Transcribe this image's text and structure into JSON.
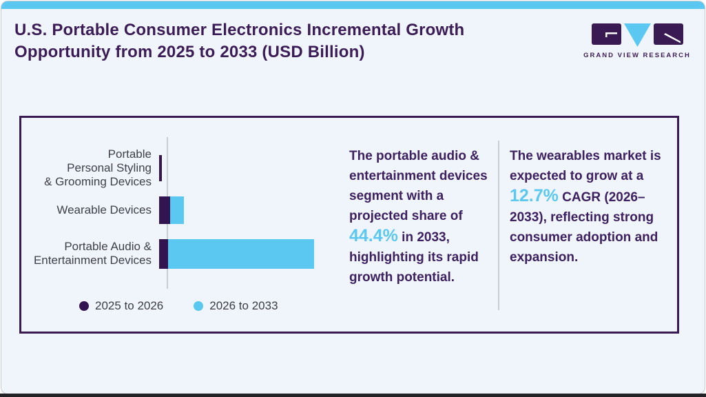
{
  "page": {
    "title": "U.S. Portable Consumer Electronics Incremental Growth\nOpportunity from 2025 to 2033 (USD Billion)",
    "accent_color": "#5bc8f2",
    "title_color": "#3b1c57",
    "card_border_color": "#3a1a52",
    "background_color": "#eff5fa"
  },
  "logo": {
    "brand": "GRAND VIEW RESEARCH",
    "icon": "gvr-monogram-icon",
    "mark_color": "#3a1a52",
    "v_color": "#5bc8f2"
  },
  "chart_data": {
    "type": "bar",
    "orientation": "horizontal",
    "stacked": true,
    "title": "U.S. Portable Consumer Electronics Incremental Growth Opportunity from 2025 to 2033 (USD Billion)",
    "categories": [
      "Portable Personal Styling & Grooming Devices",
      "Wearable Devices",
      "Portable Audio & Entertainment Devices"
    ],
    "categories_display": [
      "Portable\nPersonal Styling\n& Grooming Devices",
      "Wearable Devices",
      "Portable Audio &\nEntertainment Devices"
    ],
    "series": [
      {
        "name": "2025 to 2026",
        "color": "#321450",
        "values": [
          0.4,
          1.6,
          1.3
        ]
      },
      {
        "name": "2026 to 2033",
        "color": "#5bc8f2",
        "values": [
          0,
          2.0,
          21.2
        ]
      }
    ],
    "units": "relative bar length (no numeric value axis shown in figure)",
    "pixel_scale": 10,
    "value_axis_shown": false,
    "grid": false,
    "legend_position": "bottom-left"
  },
  "insights": {
    "left": {
      "prefix": "The portable audio & entertainment devices segment with a projected share of ",
      "highlight": "44.4%",
      "suffix": " in 2033, highlighting its rapid growth potential."
    },
    "right": {
      "prefix": "The wearables market is expected to grow at a ",
      "highlight": "12.7%",
      "suffix": " CAGR (2026–2033), reflecting strong consumer adoption and expansion."
    }
  }
}
